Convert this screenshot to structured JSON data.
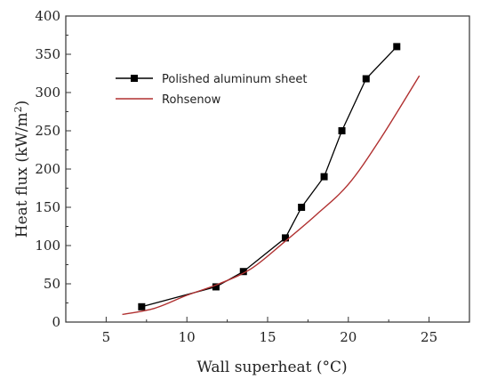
{
  "chart_data": {
    "type": "line",
    "xlabel": "Wall superheat (°C)",
    "ylabel_main": "Heat flux (kW/m",
    "ylabel_sup": "2",
    "ylabel_end": ")",
    "xlim": [
      2.5,
      27.5
    ],
    "ylim": [
      0,
      400
    ],
    "xticks": [
      5,
      10,
      15,
      20,
      25
    ],
    "yticks": [
      0,
      50,
      100,
      150,
      200,
      250,
      300,
      350,
      400
    ],
    "grid": false,
    "legend_position": "top-left",
    "series": [
      {
        "name": "Polished aluminum sheet",
        "color": "#000000",
        "marker": "square",
        "x": [
          7.2,
          11.8,
          13.5,
          16.1,
          17.1,
          18.5,
          19.6,
          21.1,
          23.0
        ],
        "y": [
          20,
          46,
          66,
          110,
          150,
          190,
          250,
          318,
          360
        ]
      },
      {
        "name": "Rohsenow",
        "color": "#b03030",
        "marker": "none",
        "x": [
          6.0,
          8.0,
          10.0,
          12.0,
          14.0,
          16.0,
          18.0,
          20.0,
          22.0,
          24.4
        ],
        "y": [
          10,
          18,
          35,
          50,
          70,
          104,
          140,
          180,
          240,
          322
        ]
      }
    ]
  }
}
